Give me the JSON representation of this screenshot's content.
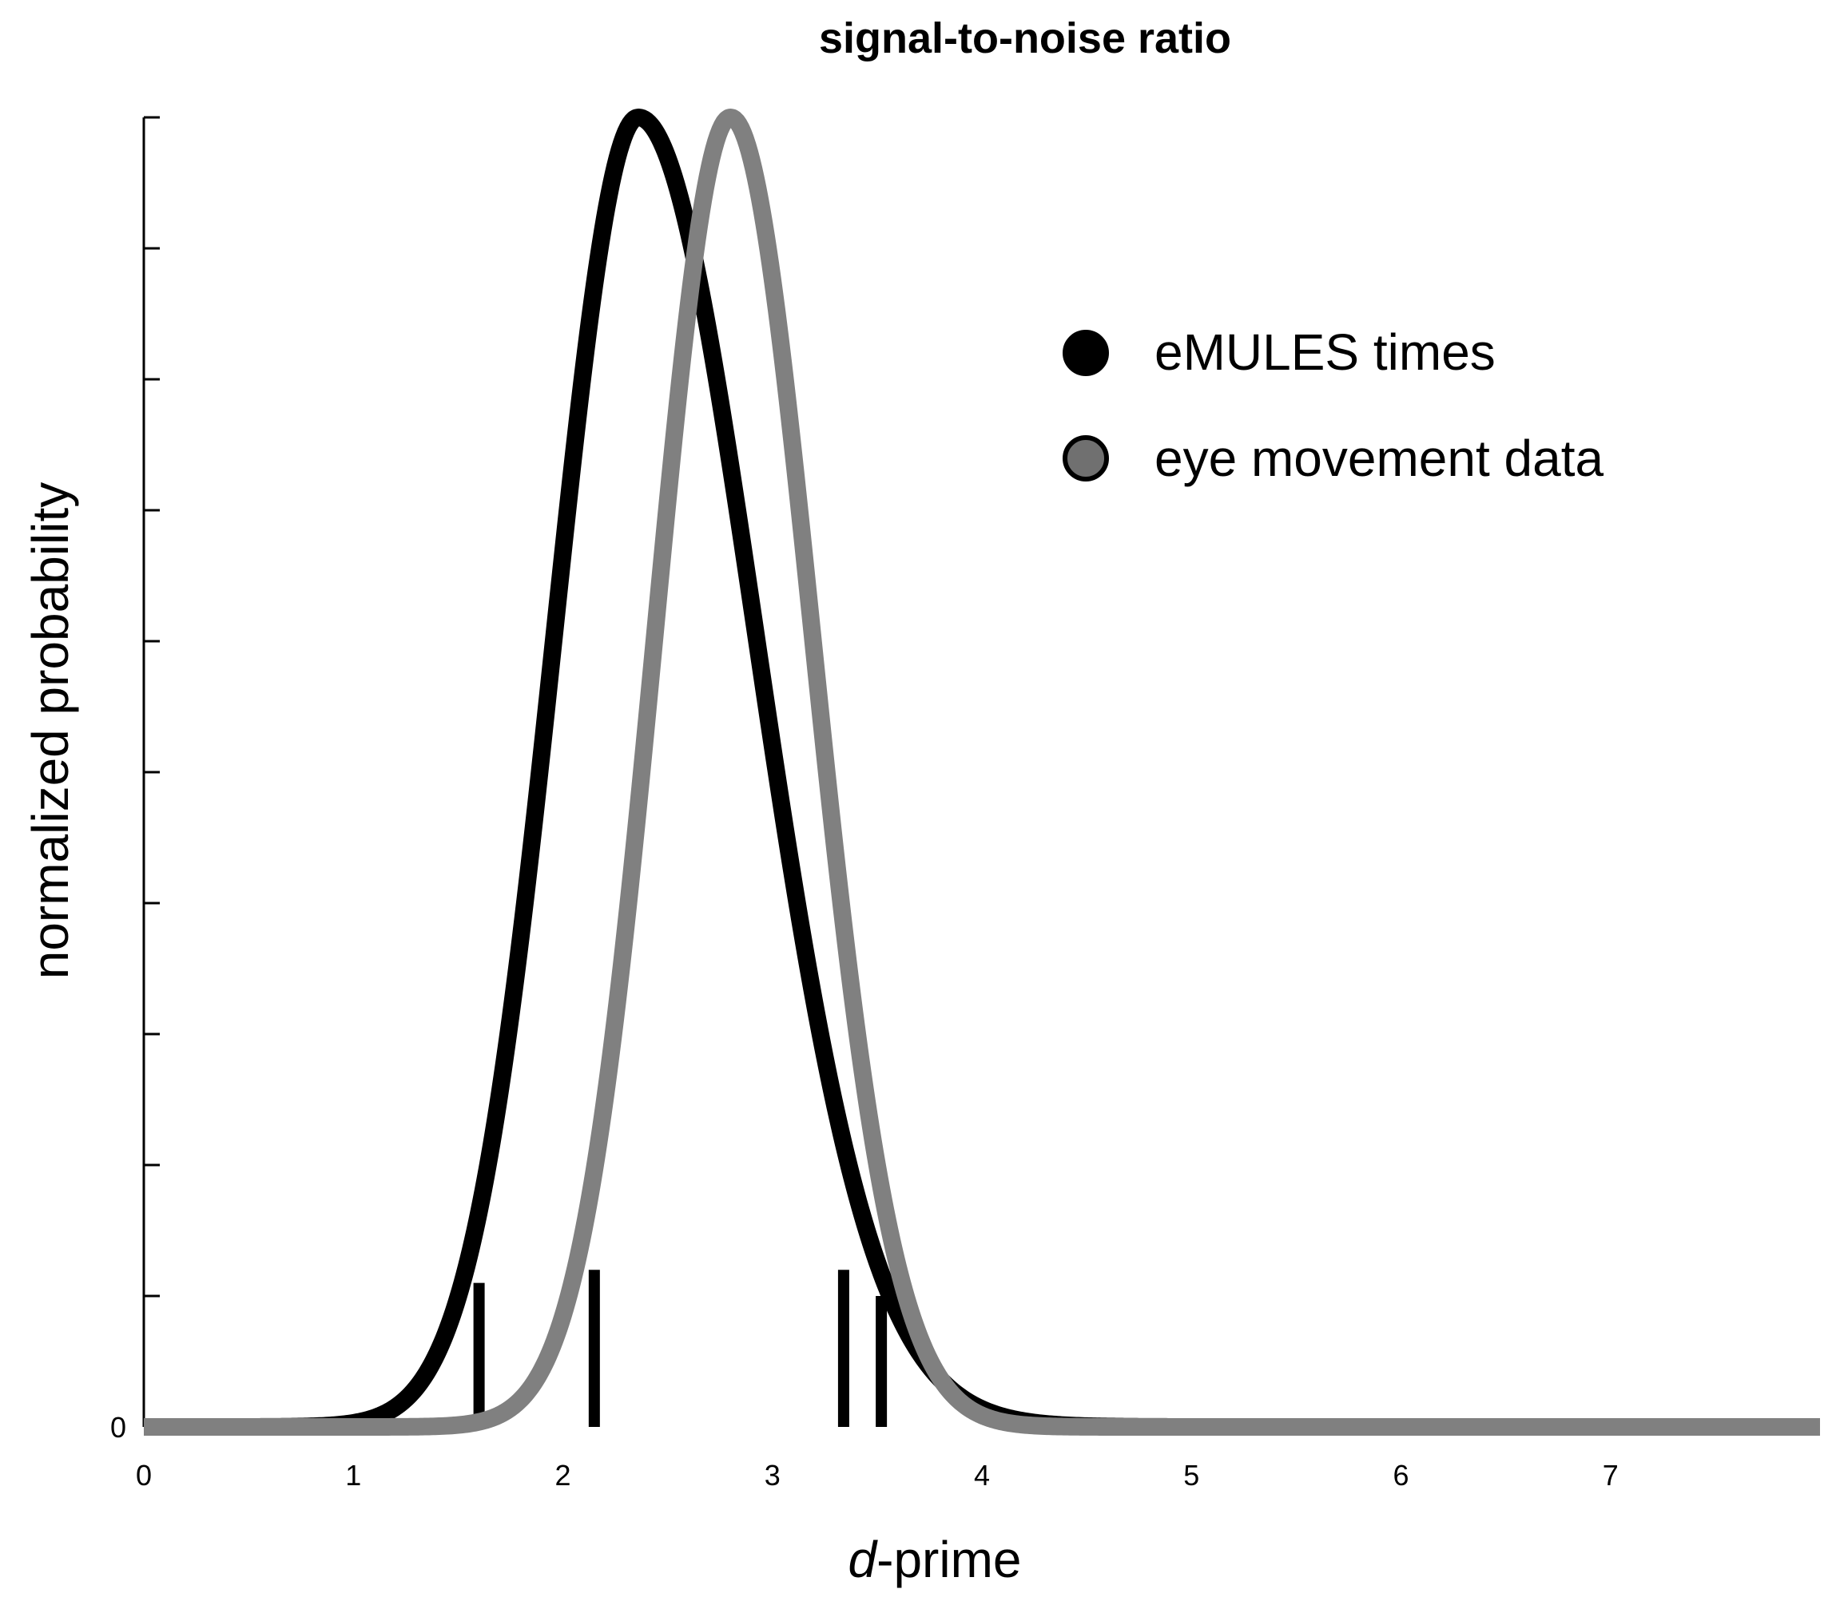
{
  "chart_data": {
    "type": "line",
    "title": "signal-to-noise ratio",
    "xlabel_italic": "d",
    "xlabel_rest": "-prime",
    "ylabel": "normalized probability",
    "xlim": [
      0,
      8
    ],
    "ylim": [
      0,
      1
    ],
    "x_ticks": [
      0,
      1,
      2,
      3,
      4,
      5,
      6,
      7
    ],
    "x_tick_labels": [
      "0",
      "1",
      "2",
      "3",
      "4",
      "5",
      "6",
      "7"
    ],
    "y_ticks": [
      0,
      0.1,
      0.2,
      0.3,
      0.4,
      0.5,
      0.6,
      0.7,
      0.8,
      0.9,
      1.0
    ],
    "y_tick_label_zero": "0",
    "legend_position": "top-right",
    "series": [
      {
        "name": "eMULES times",
        "color": "#000000",
        "marker_color": "#000000",
        "peak": 2.36,
        "sigma_left": 0.4,
        "sigma_right": 0.56,
        "ci_lines": [
          {
            "x": 1.6,
            "y": 0.11
          },
          {
            "x": 3.34,
            "y": 0.12
          }
        ]
      },
      {
        "name": "eye movement data",
        "color": "#808080",
        "marker_color": "#707070",
        "peak": 2.8,
        "sigma_left": 0.36,
        "sigma_right": 0.39,
        "ci_lines": [
          {
            "x": 2.15,
            "y": 0.12
          },
          {
            "x": 3.52,
            "y": 0.1
          }
        ]
      }
    ]
  }
}
